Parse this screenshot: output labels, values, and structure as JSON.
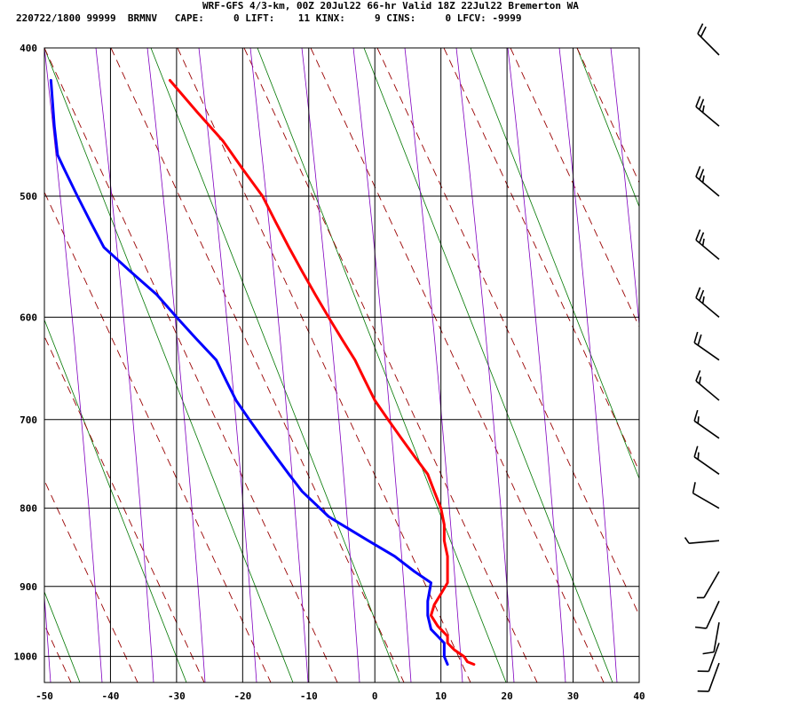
{
  "header": {
    "line1": "WRF-GFS 4/3-km, 00Z 20Jul22 66-hr Valid 18Z 22Jul22 Bremerton WA",
    "line2": "220722/1800 99999  BRMNV   CAPE:     0 LIFT:    11 KINX:     9 CINS:     0 LFCV: -9999"
  },
  "colors": {
    "temperature": "#ff0000",
    "dewpoint": "#0000ff",
    "dry_adiabat": "#990000",
    "moist_adiabat": "#8000c0",
    "mixing_ratio": "#007700",
    "grid": "#000000"
  },
  "chart_data": {
    "type": "skew-t",
    "x_ticks": [
      "-50",
      "-40",
      "-30",
      "-20",
      "-10",
      "0",
      "10",
      "20",
      "30",
      "40"
    ],
    "y_ticks": [
      "400",
      "500",
      "600",
      "700",
      "800",
      "900",
      "1000"
    ],
    "xlim": [
      -50,
      40
    ],
    "pressure_range": [
      400,
      1040
    ],
    "series": [
      {
        "key": "temperature",
        "points": [
          [
            1012,
            15
          ],
          [
            1008,
            14
          ],
          [
            1000,
            13.5
          ],
          [
            990,
            12
          ],
          [
            980,
            11
          ],
          [
            970,
            11
          ],
          [
            955,
            9.5
          ],
          [
            940,
            8.5
          ],
          [
            925,
            9
          ],
          [
            910,
            10
          ],
          [
            895,
            11
          ],
          [
            880,
            11
          ],
          [
            860,
            11
          ],
          [
            840,
            10.5
          ],
          [
            820,
            10.5
          ],
          [
            800,
            10
          ],
          [
            780,
            9
          ],
          [
            760,
            8
          ],
          [
            740,
            6
          ],
          [
            720,
            4
          ],
          [
            700,
            2
          ],
          [
            680,
            0
          ],
          [
            660,
            -1.5
          ],
          [
            640,
            -3
          ],
          [
            620,
            -5
          ],
          [
            600,
            -7
          ],
          [
            580,
            -9
          ],
          [
            560,
            -11
          ],
          [
            540,
            -13
          ],
          [
            520,
            -15
          ],
          [
            500,
            -17
          ],
          [
            480,
            -20
          ],
          [
            460,
            -23
          ],
          [
            440,
            -27
          ],
          [
            420,
            -31
          ]
        ]
      },
      {
        "key": "dewpoint",
        "points": [
          [
            1012,
            11
          ],
          [
            1000,
            10.5
          ],
          [
            990,
            10.5
          ],
          [
            980,
            10.5
          ],
          [
            960,
            8.5
          ],
          [
            940,
            8
          ],
          [
            920,
            8
          ],
          [
            895,
            8.5
          ],
          [
            880,
            6
          ],
          [
            860,
            3
          ],
          [
            840,
            -1
          ],
          [
            820,
            -5
          ],
          [
            810,
            -7
          ],
          [
            780,
            -11
          ],
          [
            760,
            -13
          ],
          [
            740,
            -15
          ],
          [
            720,
            -17
          ],
          [
            700,
            -19
          ],
          [
            680,
            -21
          ],
          [
            660,
            -22.5
          ],
          [
            640,
            -24
          ],
          [
            620,
            -27
          ],
          [
            600,
            -30
          ],
          [
            580,
            -33
          ],
          [
            560,
            -37
          ],
          [
            540,
            -41
          ],
          [
            520,
            -43
          ],
          [
            500,
            -45
          ],
          [
            480,
            -47
          ],
          [
            470,
            -48
          ],
          [
            450,
            -48.5
          ],
          [
            420,
            -49
          ]
        ]
      }
    ],
    "wind_barbs": [
      {
        "p": 400,
        "dir": 315,
        "spd": 20
      },
      {
        "p": 450,
        "dir": 310,
        "spd": 25
      },
      {
        "p": 500,
        "dir": 310,
        "spd": 25
      },
      {
        "p": 550,
        "dir": 310,
        "spd": 25
      },
      {
        "p": 600,
        "dir": 310,
        "spd": 25
      },
      {
        "p": 640,
        "dir": 305,
        "spd": 20
      },
      {
        "p": 680,
        "dir": 310,
        "spd": 15
      },
      {
        "p": 720,
        "dir": 305,
        "spd": 15
      },
      {
        "p": 760,
        "dir": 305,
        "spd": 15
      },
      {
        "p": 800,
        "dir": 300,
        "spd": 10
      },
      {
        "p": 840,
        "dir": 265,
        "spd": 5
      },
      {
        "p": 880,
        "dir": 210,
        "spd": 5
      },
      {
        "p": 920,
        "dir": 205,
        "spd": 10
      },
      {
        "p": 950,
        "dir": 190,
        "spd": 10
      },
      {
        "p": 980,
        "dir": 200,
        "spd": 10
      },
      {
        "p": 1010,
        "dir": 200,
        "spd": 10
      }
    ]
  }
}
